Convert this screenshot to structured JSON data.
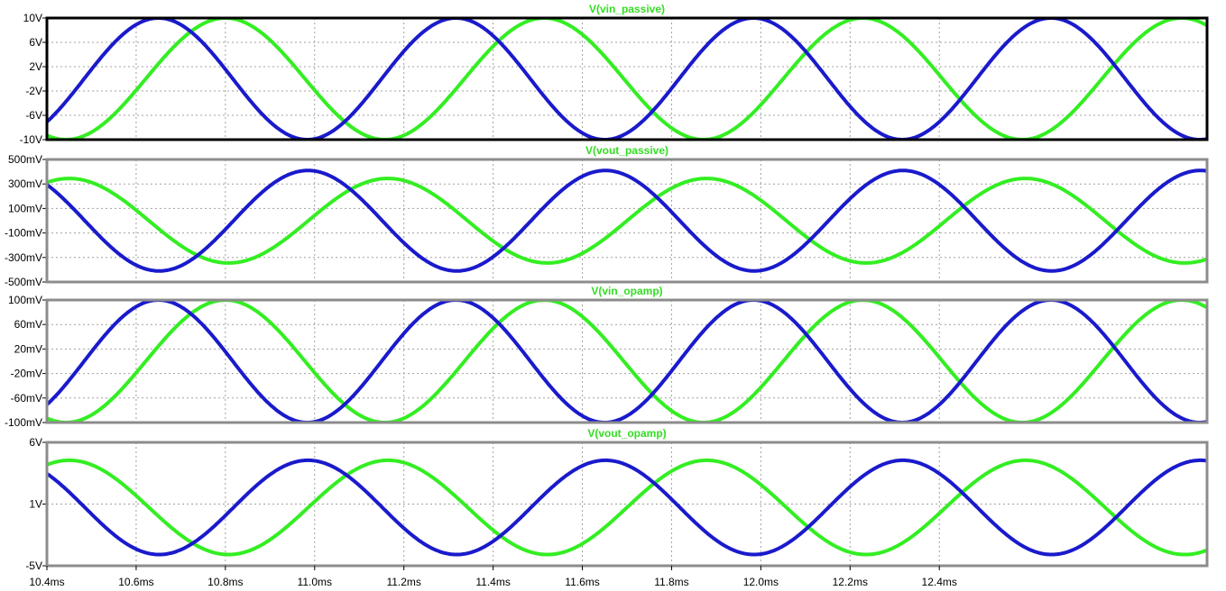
{
  "chart_data": [
    {
      "type": "line",
      "title": "V(vin_passive)",
      "yticks": [
        "10V",
        "6V",
        "2V",
        "-2V",
        "-6V",
        "-10V"
      ],
      "ylim": [
        -10,
        10
      ],
      "xlim": [
        10.4,
        13.0
      ],
      "series": [
        {
          "color": "#33ee22",
          "amplitude": 10,
          "offset": 0,
          "period_ms": 0.7143,
          "peak_ms": 10.8
        },
        {
          "color": "#1a1acc",
          "amplitude": 10,
          "offset": 0,
          "period_ms": 0.6667,
          "peak_ms": 10.65
        }
      ]
    },
    {
      "type": "line",
      "title": "V(vout_passive)",
      "yticks": [
        "500mV",
        "300mV",
        "100mV",
        "-100mV",
        "-300mV",
        "-500mV"
      ],
      "ylim": [
        -500,
        500
      ],
      "xlim": [
        10.4,
        13.0
      ],
      "series": [
        {
          "color": "#33ee22",
          "amplitude": 345,
          "offset": 0,
          "period_ms": 0.7143,
          "peak_ms": 10.45
        },
        {
          "color": "#1a1acc",
          "amplitude": 410,
          "offset": 0,
          "period_ms": 0.6667,
          "peak_ms": 10.985
        }
      ]
    },
    {
      "type": "line",
      "title": "V(vin_opamp)",
      "yticks": [
        "100mV",
        "60mV",
        "20mV",
        "-20mV",
        "-60mV",
        "-100mV"
      ],
      "ylim": [
        -100,
        100
      ],
      "xlim": [
        10.4,
        13.0
      ],
      "series": [
        {
          "color": "#33ee22",
          "amplitude": 100,
          "offset": 0,
          "period_ms": 0.7143,
          "peak_ms": 10.8
        },
        {
          "color": "#1a1acc",
          "amplitude": 100,
          "offset": 0,
          "period_ms": 0.6667,
          "peak_ms": 10.65
        }
      ]
    },
    {
      "type": "line",
      "title": "V(vout_opamp)",
      "yticks": [
        "6V",
        "1V",
        "-5V"
      ],
      "ylim": [
        -5,
        6
      ],
      "xlim": [
        10.4,
        13.0
      ],
      "series": [
        {
          "color": "#33ee22",
          "amplitude": 4.2,
          "offset": 0.2,
          "period_ms": 0.7143,
          "peak_ms": 10.45
        },
        {
          "color": "#1a1acc",
          "amplitude": 4.2,
          "offset": 0.2,
          "period_ms": 0.6667,
          "peak_ms": 10.985
        }
      ]
    }
  ],
  "xaxis": {
    "ticks": [
      "10.4ms",
      "10.6ms",
      "10.8ms",
      "11.0ms",
      "11.2ms",
      "11.4ms",
      "11.6ms",
      "11.8ms",
      "12.0ms",
      "12.2ms",
      "12.4ms"
    ],
    "tick_values": [
      10.4,
      10.6,
      10.8,
      11.0,
      11.2,
      11.4,
      11.6,
      11.8,
      12.0,
      12.2,
      12.4
    ],
    "grid": true
  },
  "colors": {
    "trace_green": "#33ee22",
    "trace_blue": "#1a1acc",
    "grid": "#a0a0a0",
    "active_frame": "#000000",
    "frame": "#8c8c8c"
  }
}
